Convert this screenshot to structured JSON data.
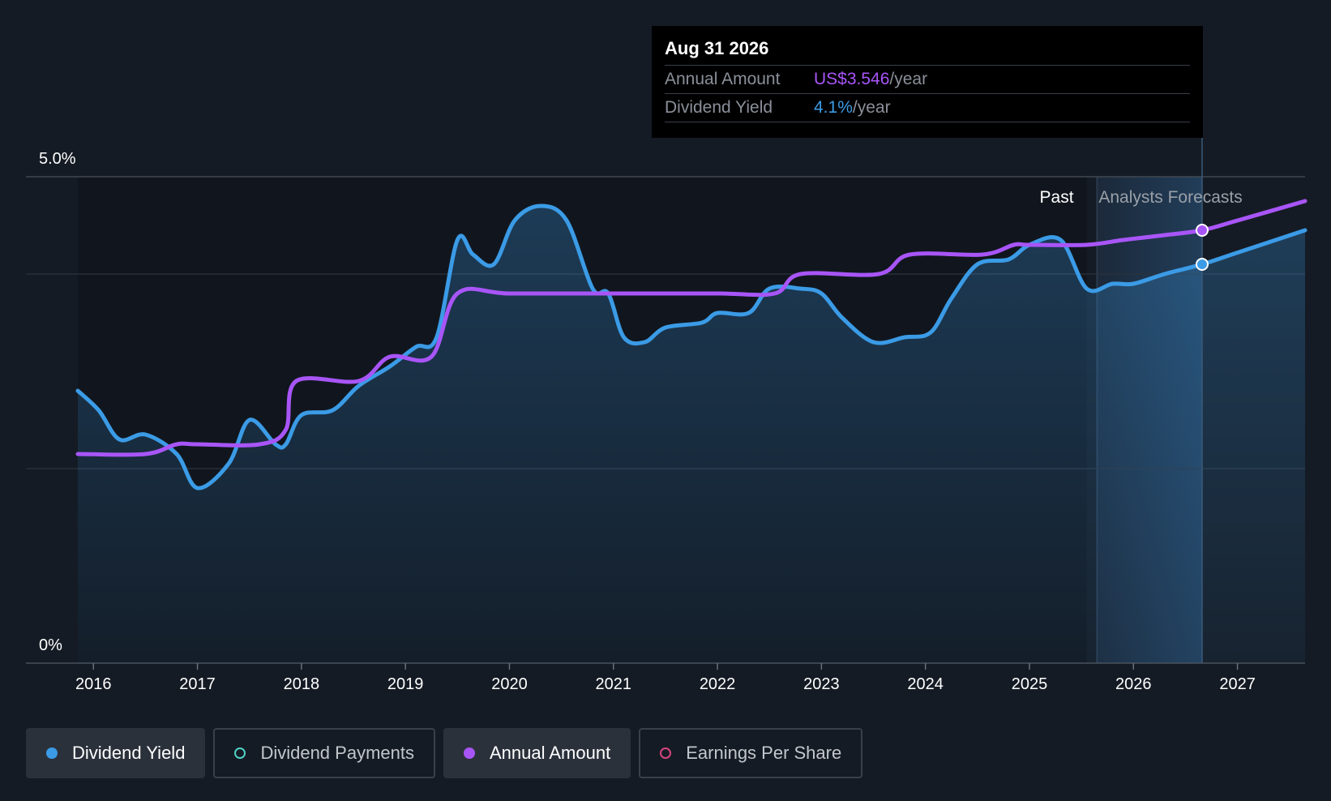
{
  "tooltip": {
    "date": "Aug 31 2026",
    "rows": [
      {
        "label": "Annual Amount",
        "value": "US$3.546",
        "unit": "/year"
      },
      {
        "label": "Dividend Yield",
        "value": "4.1%",
        "unit": "/year"
      }
    ]
  },
  "legend": [
    {
      "label": "Dividend Yield",
      "color": "#3b9be6",
      "state": "active",
      "marker": "filled"
    },
    {
      "label": "Dividend Payments",
      "color": "#4fd1c5",
      "state": "inactive",
      "marker": "hollow"
    },
    {
      "label": "Annual Amount",
      "color": "#a855f7",
      "state": "active",
      "marker": "filled"
    },
    {
      "label": "Earnings Per Share",
      "color": "#d6457f",
      "state": "inactive",
      "marker": "hollow"
    }
  ],
  "chart_data": {
    "type": "line",
    "y_tick_labels": [
      "5.0%",
      "0%"
    ],
    "ylim": [
      0,
      5.0
    ],
    "xlim": [
      2015.85,
      2027.65
    ],
    "x_tick_labels": [
      "2016",
      "2017",
      "2018",
      "2019",
      "2020",
      "2021",
      "2022",
      "2023",
      "2024",
      "2025",
      "2026",
      "2027"
    ],
    "x_ticks": [
      2016,
      2017,
      2018,
      2019,
      2020,
      2021,
      2022,
      2023,
      2024,
      2025,
      2026,
      2027
    ],
    "regions": {
      "past_label": "Past",
      "forecast_label": "Analysts Forecasts",
      "past_end": 2025.55,
      "forecast_start": 2025.65
    },
    "highlight_x": 2026.66,
    "colors": {
      "yield": "#3b9be6",
      "amount": "#a855f7"
    },
    "series": [
      {
        "name": "Dividend Yield",
        "color": "#3b9be6",
        "area": true,
        "x": [
          2015.85,
          2016.05,
          2016.25,
          2016.5,
          2016.8,
          2017.0,
          2017.3,
          2017.5,
          2017.75,
          2017.85,
          2018.0,
          2018.3,
          2018.55,
          2018.85,
          2019.1,
          2019.3,
          2019.5,
          2019.65,
          2019.85,
          2020.05,
          2020.3,
          2020.55,
          2020.8,
          2020.95,
          2021.1,
          2021.3,
          2021.5,
          2021.85,
          2022.0,
          2022.3,
          2022.5,
          2022.8,
          2023.0,
          2023.2,
          2023.5,
          2023.8,
          2024.05,
          2024.25,
          2024.5,
          2024.8,
          2025.0,
          2025.3,
          2025.55,
          2025.8,
          2026.0,
          2026.3,
          2026.66,
          2027.0,
          2027.65
        ],
        "y": [
          2.8,
          2.6,
          2.3,
          2.35,
          2.15,
          1.8,
          2.05,
          2.5,
          2.25,
          2.25,
          2.55,
          2.6,
          2.85,
          3.05,
          3.25,
          3.35,
          4.35,
          4.2,
          4.1,
          4.55,
          4.7,
          4.55,
          3.85,
          3.8,
          3.35,
          3.3,
          3.45,
          3.5,
          3.6,
          3.6,
          3.85,
          3.85,
          3.8,
          3.55,
          3.3,
          3.35,
          3.4,
          3.75,
          4.1,
          4.15,
          4.3,
          4.35,
          3.85,
          3.9,
          3.9,
          4.0,
          4.1,
          4.22,
          4.45
        ]
      },
      {
        "name": "Annual Amount",
        "color": "#a855f7",
        "area": false,
        "x": [
          2015.85,
          2016.5,
          2016.8,
          2017.0,
          2017.6,
          2017.85,
          2017.95,
          2018.55,
          2018.85,
          2019.25,
          2019.5,
          2020.0,
          2021.0,
          2022.0,
          2022.55,
          2022.8,
          2023.55,
          2023.85,
          2024.55,
          2024.85,
          2025.0,
          2025.55,
          2025.9,
          2026.3,
          2026.66,
          2027.0,
          2027.65
        ],
        "y": [
          2.15,
          2.15,
          2.25,
          2.25,
          2.25,
          2.4,
          2.9,
          2.9,
          3.15,
          3.15,
          3.8,
          3.8,
          3.8,
          3.8,
          3.8,
          4.0,
          4.0,
          4.2,
          4.2,
          4.3,
          4.3,
          4.3,
          4.35,
          4.4,
          4.45,
          4.55,
          4.75
        ]
      }
    ]
  }
}
